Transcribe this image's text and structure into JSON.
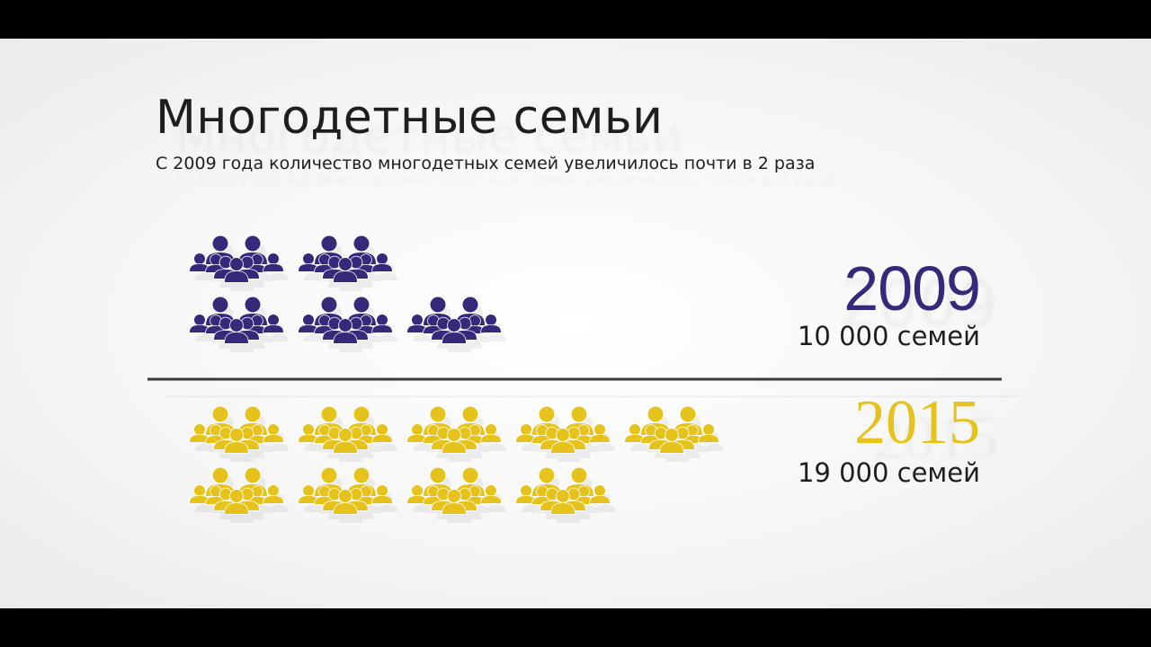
{
  "header": {
    "title": "Многодетные семьи",
    "subtitle": "С 2009 года количество многодетных семей увеличилось почти в 2 раза"
  },
  "chart_data": {
    "type": "pictogram",
    "series": [
      {
        "year_label": "2009",
        "count_label": "10 000 семей",
        "value": 10000,
        "icons": 5,
        "color": "#35297a"
      },
      {
        "year_label": "2015",
        "count_label": "19 000 семей",
        "value": 19000,
        "icons": 9,
        "color": "#e5c21c"
      }
    ],
    "units_per_icon": 2000,
    "legend": "right"
  }
}
